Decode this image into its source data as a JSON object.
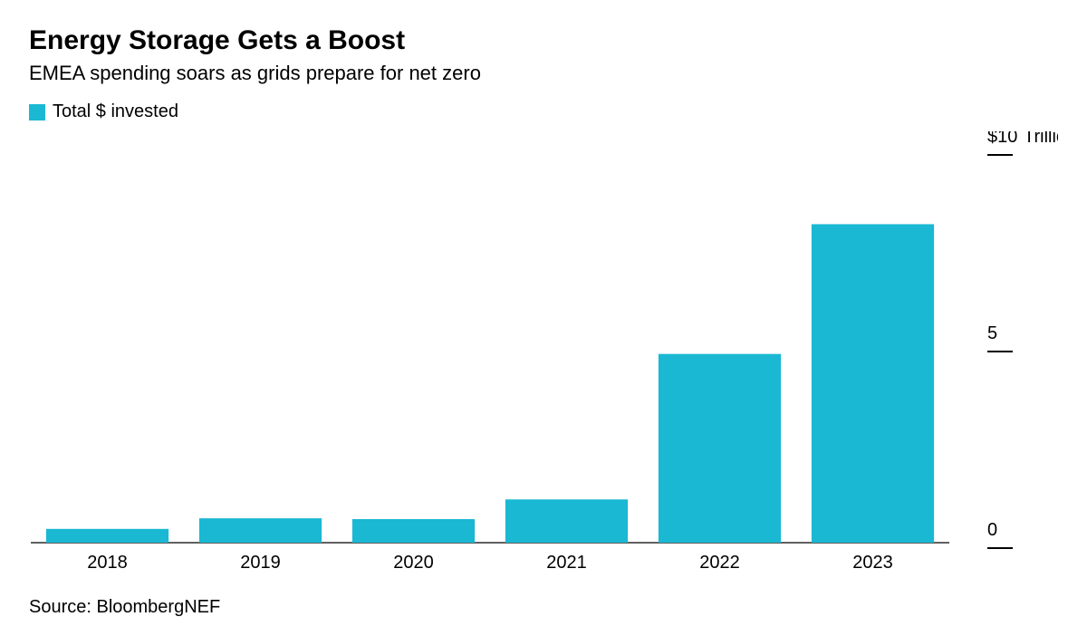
{
  "title": "Energy Storage Gets a Boost",
  "subtitle": "EMEA spending soars as grids prepare for net zero",
  "legend": {
    "swatch_color": "#1ab8d2",
    "label": "Total $ invested"
  },
  "chart": {
    "type": "bar",
    "categories": [
      "2018",
      "2019",
      "2020",
      "2021",
      "2022",
      "2023"
    ],
    "values": [
      0.35,
      0.62,
      0.6,
      1.1,
      4.8,
      8.1
    ],
    "bar_color": "#1ab8d2",
    "background_color": "#ffffff",
    "axis_color": "#000000",
    "tick_color": "#000000",
    "label_color": "#000000",
    "y": {
      "min": 0,
      "max": 10,
      "ticks": [
        0,
        5,
        10
      ],
      "tick_labels": [
        "0",
        "5",
        "$10"
      ],
      "unit_suffix": "Trillion",
      "tick_mark_length": 28
    },
    "x": {
      "label_fontsize": 20
    },
    "bar_width_ratio": 0.8,
    "label_fontsize": 20
  },
  "source": "Source: BloombergNEF"
}
